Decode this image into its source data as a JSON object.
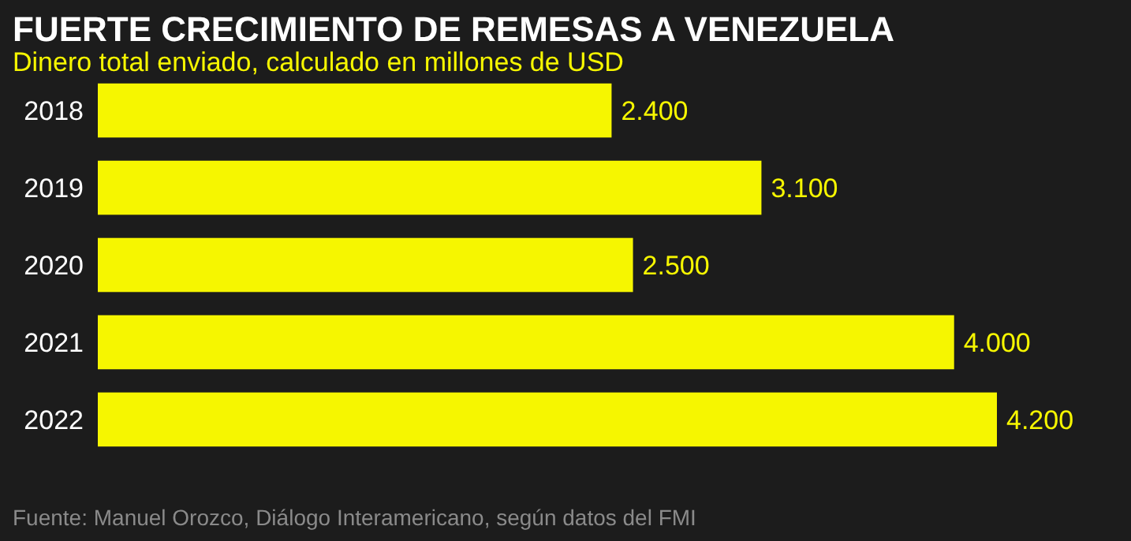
{
  "chart_data": {
    "type": "bar",
    "orientation": "horizontal",
    "title": "FUERTE CRECIMIENTO DE REMESAS A VENEZUELA",
    "subtitle": "Dinero total enviado, calculado en millones de USD",
    "categories": [
      "2018",
      "2019",
      "2020",
      "2021",
      "2022"
    ],
    "values": [
      2400,
      3100,
      2500,
      4000,
      4200
    ],
    "value_labels": [
      "2.400",
      "3.100",
      "2.500",
      "4.000",
      "4.200"
    ],
    "color": "#f6f600",
    "annotations": [
      "Fuente: Manuel Orozco, Diálogo Interamericano, según datos del FMI"
    ]
  }
}
